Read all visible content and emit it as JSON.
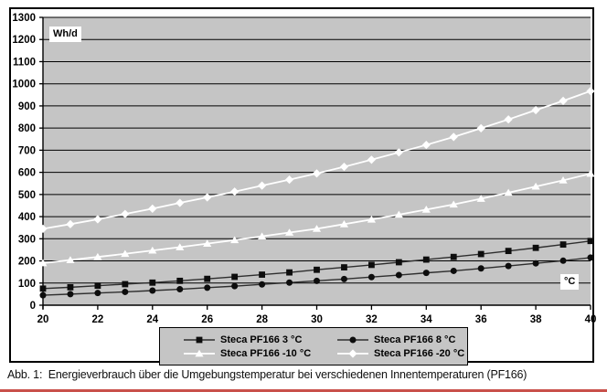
{
  "caption": "Abb. 1:  Energieverbrauch über die Umgebungstemperatur bei verschiedenen Innentemperaturen (PF166)",
  "chart_data": {
    "type": "line",
    "title": "",
    "xlabel": "°C",
    "ylabel": "Wh/d",
    "xlim": [
      20,
      40
    ],
    "ylim": [
      0,
      1300
    ],
    "x_ticks": [
      20,
      22,
      24,
      26,
      28,
      30,
      32,
      34,
      36,
      38,
      40
    ],
    "y_ticks": [
      0,
      100,
      200,
      300,
      400,
      500,
      600,
      700,
      800,
      900,
      1000,
      1100,
      1200,
      1300
    ],
    "grid": "horizontal",
    "legend_position": "bottom-center",
    "x": [
      20,
      21,
      22,
      23,
      24,
      25,
      26,
      27,
      28,
      29,
      30,
      31,
      32,
      33,
      34,
      35,
      36,
      37,
      38,
      39,
      40
    ],
    "series": [
      {
        "name": "Steca PF166 3 °C",
        "marker": "square",
        "line_color": "#2e2e2e",
        "marker_color": "#0d0d0d",
        "values": [
          75,
          81,
          88,
          95,
          102,
          110,
          119,
          128,
          138,
          148,
          160,
          171,
          182,
          194,
          206,
          218,
          231,
          245,
          259,
          274,
          290
        ]
      },
      {
        "name": "Steca PF166 8 °C",
        "marker": "circle",
        "line_color": "#2e2e2e",
        "marker_color": "#0d0d0d",
        "values": [
          45,
          50,
          55,
          60,
          66,
          72,
          79,
          86,
          94,
          102,
          110,
          118,
          127,
          136,
          146,
          155,
          166,
          177,
          189,
          201,
          215
        ]
      },
      {
        "name": "Steca PF166 -10 °C",
        "marker": "triangle",
        "line_color": "#ffffff",
        "marker_color": "#ffffff",
        "values": [
          190,
          204,
          218,
          232,
          247,
          262,
          278,
          294,
          311,
          328,
          345,
          366,
          387,
          409,
          432,
          455,
          481,
          508,
          536,
          564,
          594
        ]
      },
      {
        "name": "Steca PF166 -20 °C",
        "marker": "diamond",
        "line_color": "#ffffff",
        "marker_color": "#ffffff",
        "values": [
          345,
          366,
          388,
          412,
          436,
          462,
          487,
          513,
          540,
          567,
          595,
          625,
          657,
          690,
          724,
          760,
          799,
          839,
          881,
          923,
          967
        ]
      }
    ],
    "colors": {
      "plot_bg": "#c5c5c5",
      "grid": "#000000",
      "axis": "#000000",
      "frame_border": "#000000",
      "legend_bg": "#c5c5c5",
      "red_rule": "#c9504b"
    }
  }
}
